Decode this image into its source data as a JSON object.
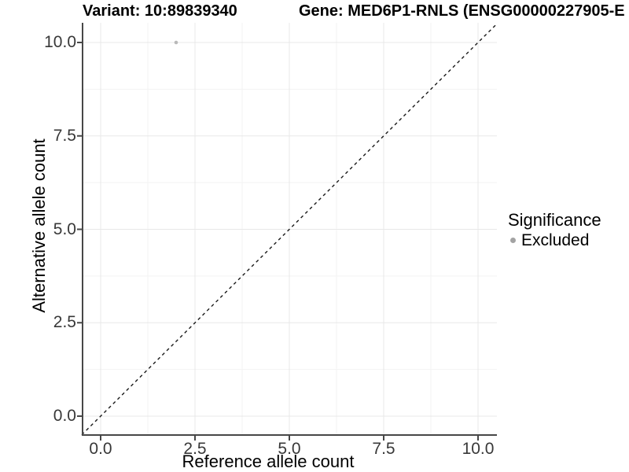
{
  "header": {
    "variant_title": "Variant: 10:89839340",
    "gene_title": "Gene: MED6P1-RNLS (ENSG00000227905-E"
  },
  "chart_data": {
    "type": "scatter",
    "xlabel": "Reference allele count",
    "ylabel": "Alternative allele count",
    "xlim": [
      -0.5,
      10.5
    ],
    "ylim": [
      -0.5,
      10.5
    ],
    "x_ticks": {
      "values": [
        0,
        2.5,
        5,
        7.5,
        10
      ],
      "labels": [
        "0.0",
        "2.5",
        "5.0",
        "7.5",
        "10.0"
      ]
    },
    "y_ticks": {
      "values": [
        0,
        2.5,
        5,
        7.5,
        10
      ],
      "labels": [
        "0.0",
        "2.5",
        "5.0",
        "7.5",
        "10.0"
      ]
    },
    "x_minor": [
      1.25,
      3.75,
      6.25,
      8.75
    ],
    "y_minor": [
      1.25,
      3.75,
      6.25,
      8.75
    ],
    "grid": "major+minor on white panel",
    "series": [
      {
        "name": "Excluded",
        "color": "#b9b9b9",
        "point_radius": 2.3,
        "points": [
          [
            2,
            10
          ]
        ]
      }
    ],
    "reference_line": {
      "style": "dashed",
      "color": "#1a1a1a",
      "from": [
        -0.5,
        -0.5
      ],
      "to": [
        10.5,
        10.5
      ],
      "meaning": "identity line y = x"
    },
    "legend": {
      "position": "right",
      "title": "Significance",
      "items": [
        {
          "label": "Excluded",
          "color": "#a3a3a3"
        }
      ]
    }
  },
  "colors": {
    "background": "#ffffff",
    "grid_major": "#e8e8e8",
    "grid_minor": "#f3f3f3",
    "axis_line": "#474747",
    "tick_mark": "#474747",
    "tick_label": "#383838",
    "title": "#000000"
  }
}
